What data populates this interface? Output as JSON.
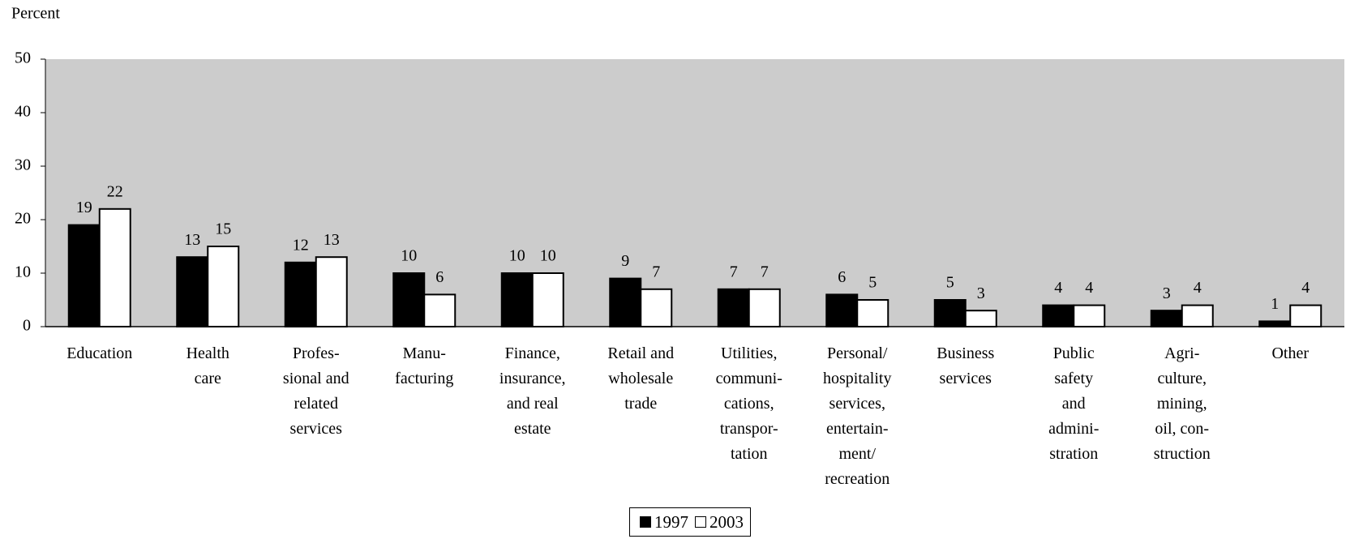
{
  "chart_data": {
    "type": "bar",
    "y_label": "Percent",
    "categories": [
      "Education",
      "Health\ncare",
      "Profes-\nsional and\nrelated\nservices",
      "Manu-\nfacturing",
      "Finance,\ninsurance,\nand real\nestate",
      "Retail and\nwholesale\ntrade",
      "Utilities,\ncommuni-\ncations,\ntranspor-\ntation",
      "Personal/\nhospitality\nservices,\nentertain-\nment/\nrecreation",
      "Business\nservices",
      "Public\nsafety\nand\nadmini-\nstration",
      "Agri-\nculture,\nmining,\noil, con-\nstruction",
      "Other"
    ],
    "series": [
      {
        "name": "1997",
        "color": "#000000",
        "values": [
          19,
          13,
          12,
          10,
          10,
          9,
          7,
          6,
          5,
          4,
          3,
          1
        ]
      },
      {
        "name": "2003",
        "color": "#ffffff",
        "values": [
          22,
          15,
          13,
          6,
          10,
          7,
          7,
          5,
          3,
          4,
          4,
          4
        ]
      }
    ],
    "ylim": [
      0,
      50
    ],
    "yticks": [
      0,
      10,
      20,
      30,
      40,
      50
    ],
    "grid": false,
    "plot_background": "#cccccc",
    "legend": "bottom"
  }
}
